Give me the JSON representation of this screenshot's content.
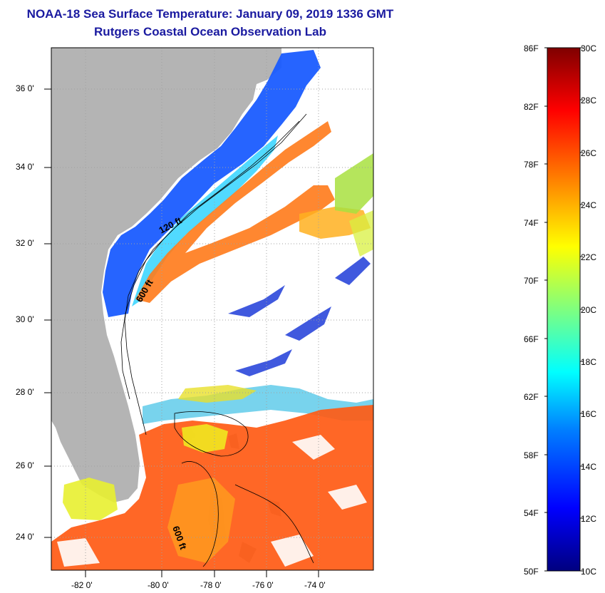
{
  "title": {
    "line1": "NOAA-18 Sea Surface Temperature:  January 09, 2019 1336 GMT",
    "line2": "Rutgers Coastal Ocean Observation Lab"
  },
  "map": {
    "lat_labels": [
      "36 0'",
      "34 0'",
      "32 0'",
      "30 0'",
      "28 0'",
      "26 0'",
      "24 0'"
    ],
    "lon_labels": [
      "-82 0'",
      "-80 0'",
      "-78 0'",
      "-76 0'",
      "-74 0'"
    ],
    "contour_labels": [
      "120 ft",
      "600 ft",
      "600 ft"
    ],
    "colors": {
      "land": "#b4b4b4",
      "background": "#ffffff"
    }
  },
  "colorbar": {
    "fahrenheit_labels": [
      "86F",
      "82F",
      "78F",
      "74F",
      "70F",
      "66F",
      "62F",
      "58F",
      "54F",
      "50F"
    ],
    "celsius_labels": [
      "30C",
      "28C",
      "26C",
      "24C",
      "22C",
      "20C",
      "18C",
      "16C",
      "14C",
      "12C",
      "10C"
    ],
    "colors": [
      "#00007f",
      "#0000ff",
      "#007fff",
      "#00ffff",
      "#7fff7f",
      "#ffff00",
      "#ff7f00",
      "#ff0000",
      "#7f0000"
    ]
  }
}
